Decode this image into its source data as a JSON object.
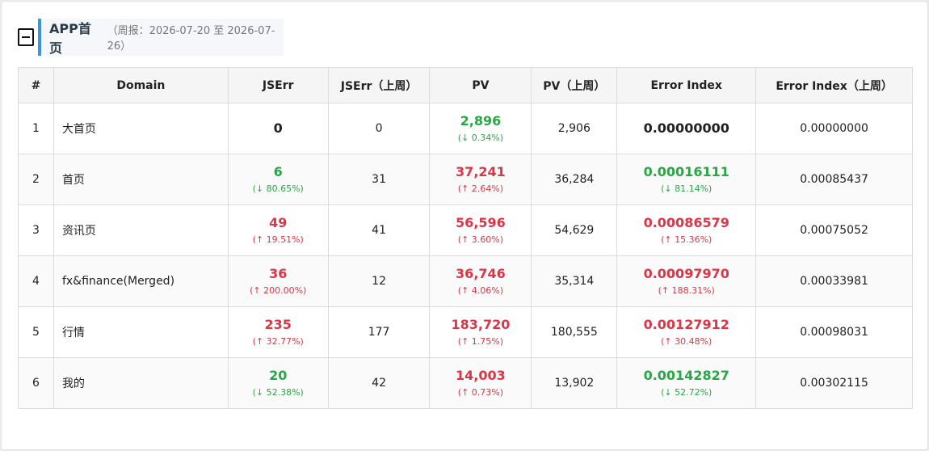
{
  "header": {
    "icon": "document-icon",
    "title": "APP首页",
    "subtitle": "（周报：2026-07-20 至 2026-07-26）"
  },
  "colors": {
    "good": "#28a745",
    "bad": "#dc3545",
    "accent": "#3a96dd"
  },
  "table": {
    "columns": [
      "#",
      "Domain",
      "JSErr",
      "JSErr（上周）",
      "PV",
      "PV（上周）",
      "Error Index",
      "Error Index（上周）"
    ],
    "rows": [
      {
        "idx": "1",
        "domain": "大首页",
        "jserr": "0",
        "jserr_change": "",
        "jserr_trend": "neutral",
        "jserr_prev": "0",
        "pv": "2,896",
        "pv_change": "(↓ 0.34%)",
        "pv_trend": "green",
        "pv_prev": "2,906",
        "ei": "0.00000000",
        "ei_change": "",
        "ei_trend": "neutral",
        "ei_prev": "0.00000000"
      },
      {
        "idx": "2",
        "domain": "首页",
        "jserr": "6",
        "jserr_change": "(↓ 80.65%)",
        "jserr_trend": "green",
        "jserr_prev": "31",
        "pv": "37,241",
        "pv_change": "(↑ 2.64%)",
        "pv_trend": "red",
        "pv_prev": "36,284",
        "ei": "0.00016111",
        "ei_change": "(↓ 81.14%)",
        "ei_trend": "green",
        "ei_prev": "0.00085437"
      },
      {
        "idx": "3",
        "domain": "资讯页",
        "jserr": "49",
        "jserr_change": "(↑ 19.51%)",
        "jserr_trend": "red",
        "jserr_prev": "41",
        "pv": "56,596",
        "pv_change": "(↑ 3.60%)",
        "pv_trend": "red",
        "pv_prev": "54,629",
        "ei": "0.00086579",
        "ei_change": "(↑ 15.36%)",
        "ei_trend": "red",
        "ei_prev": "0.00075052"
      },
      {
        "idx": "4",
        "domain": "fx&finance(Merged)",
        "jserr": "36",
        "jserr_change": "(↑ 200.00%)",
        "jserr_trend": "red",
        "jserr_prev": "12",
        "pv": "36,746",
        "pv_change": "(↑ 4.06%)",
        "pv_trend": "red",
        "pv_prev": "35,314",
        "ei": "0.00097970",
        "ei_change": "(↑ 188.31%)",
        "ei_trend": "red",
        "ei_prev": "0.00033981"
      },
      {
        "idx": "5",
        "domain": "行情",
        "jserr": "235",
        "jserr_change": "(↑ 32.77%)",
        "jserr_trend": "red",
        "jserr_prev": "177",
        "pv": "183,720",
        "pv_change": "(↑ 1.75%)",
        "pv_trend": "red",
        "pv_prev": "180,555",
        "ei": "0.00127912",
        "ei_change": "(↑ 30.48%)",
        "ei_trend": "red",
        "ei_prev": "0.00098031"
      },
      {
        "idx": "6",
        "domain": "我的",
        "jserr": "20",
        "jserr_change": "(↓ 52.38%)",
        "jserr_trend": "green",
        "jserr_prev": "42",
        "pv": "14,003",
        "pv_change": "(↑ 0.73%)",
        "pv_trend": "red",
        "pv_prev": "13,902",
        "ei": "0.00142827",
        "ei_change": "(↓ 52.72%)",
        "ei_trend": "green",
        "ei_prev": "0.00302115"
      }
    ]
  }
}
